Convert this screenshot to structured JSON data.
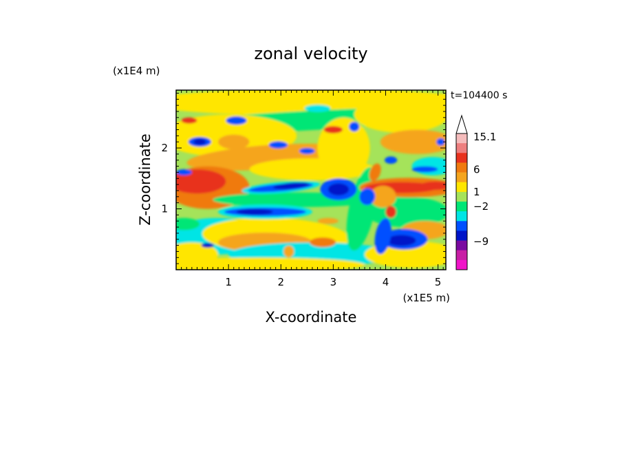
{
  "chart_data": {
    "type": "heatmap",
    "title": "zonal velocity",
    "time_label": "t=104400 s",
    "x_axis": {
      "label": "X-coordinate",
      "scale_label": "(x1E5 m)",
      "range": [
        0,
        5.15
      ],
      "ticks": [
        "1",
        "2",
        "3",
        "4",
        "5"
      ]
    },
    "y_axis": {
      "label": "Z-coordinate",
      "scale_label": "(x1E4 m)",
      "range": [
        0,
        2.95
      ],
      "ticks": [
        "1",
        "2"
      ]
    },
    "colorbar": {
      "labels": [
        "15.1",
        "6",
        "1",
        "-2",
        "-9"
      ],
      "levels_top_to_bottom": [
        {
          "color": "#f5bcbc"
        },
        {
          "color": "#ee7f7f"
        },
        {
          "color": "#e8321e"
        },
        {
          "color": "#f07a0f"
        },
        {
          "color": "#f5a51e"
        },
        {
          "color": "#ffe600"
        },
        {
          "color": "#a5e35a"
        },
        {
          "color": "#00e676"
        },
        {
          "color": "#00e5e5"
        },
        {
          "color": "#0050ff"
        },
        {
          "color": "#0014c8"
        },
        {
          "color": "#7a0aa0"
        },
        {
          "color": "#c81ea5"
        },
        {
          "color": "#f014c8"
        }
      ]
    },
    "features": [
      {
        "kind": "negative-jet",
        "x_range": [
          1.4,
          2.7
        ],
        "z_center": 1.35,
        "value": -9
      },
      {
        "kind": "negative-jet",
        "x_range": [
          1.1,
          2.6
        ],
        "z_center": 0.95,
        "value": -9
      },
      {
        "kind": "negative-jet",
        "x_range": [
          2.8,
          3.4
        ],
        "z_center": 1.35,
        "value": -9
      },
      {
        "kind": "negative-core",
        "x_range": [
          3.9,
          4.6
        ],
        "z_center": 0.5,
        "value": -9
      },
      {
        "kind": "positive-jet",
        "x_range": [
          3.6,
          5.15
        ],
        "z_center": 1.35,
        "value": 6
      },
      {
        "kind": "positive-band",
        "x_range": [
          0.0,
          1.3
        ],
        "z_center": 1.3,
        "value": 6
      },
      {
        "kind": "negative-cells",
        "x_range": [
          0.2,
          1.6
        ],
        "z_center": 2.2,
        "value": -9
      }
    ]
  }
}
